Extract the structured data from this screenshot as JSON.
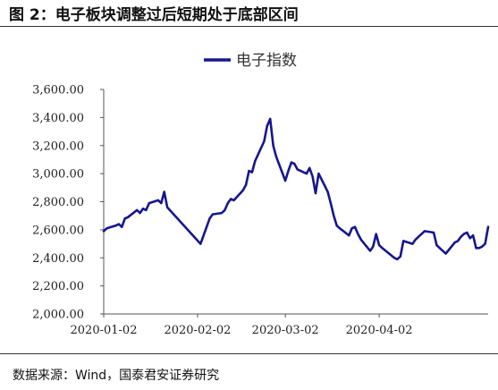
{
  "figure": {
    "title": "图 2：电子板块调整过后短期处于底部区间",
    "source": "数据来源：Wind，国泰君安证券研究"
  },
  "colors": {
    "line": "#16168f",
    "axis": "#555555",
    "text": "#222222"
  },
  "chart_data": {
    "type": "line",
    "title": "",
    "xlabel": "",
    "ylabel": "",
    "ylim": [
      2000,
      3600
    ],
    "y_ticks": [
      2000,
      2200,
      2400,
      2600,
      2800,
      3000,
      3200,
      3400,
      3600
    ],
    "y_tick_labels": [
      "2,000.00",
      "2,200.00",
      "2,400.00",
      "2,600.00",
      "2,800.00",
      "3,000.00",
      "3,200.00",
      "3,400.00",
      "3,600.00"
    ],
    "x_tick_labels": [
      "2020-01-02",
      "2020-02-02",
      "2020-03-02",
      "2020-04-02"
    ],
    "x_tick_dates": [
      "2020-01-02",
      "2020-02-02",
      "2020-03-02",
      "2020-04-02"
    ],
    "x_range": [
      "2020-01-02",
      "2020-05-08"
    ],
    "grid": false,
    "legend_position": "top-center",
    "series": [
      {
        "name": "电子指数",
        "points": [
          [
            "2020-01-02",
            2590
          ],
          [
            "2020-01-03",
            2610
          ],
          [
            "2020-01-06",
            2630
          ],
          [
            "2020-01-07",
            2640
          ],
          [
            "2020-01-08",
            2620
          ],
          [
            "2020-01-09",
            2680
          ],
          [
            "2020-01-10",
            2690
          ],
          [
            "2020-01-13",
            2740
          ],
          [
            "2020-01-14",
            2720
          ],
          [
            "2020-01-15",
            2750
          ],
          [
            "2020-01-16",
            2740
          ],
          [
            "2020-01-17",
            2790
          ],
          [
            "2020-01-20",
            2810
          ],
          [
            "2020-01-21",
            2790
          ],
          [
            "2020-01-22",
            2870
          ],
          [
            "2020-01-23",
            2760
          ],
          [
            "2020-02-03",
            2500
          ],
          [
            "2020-02-04",
            2560
          ],
          [
            "2020-02-05",
            2620
          ],
          [
            "2020-02-06",
            2680
          ],
          [
            "2020-02-07",
            2710
          ],
          [
            "2020-02-10",
            2720
          ],
          [
            "2020-02-11",
            2740
          ],
          [
            "2020-02-12",
            2790
          ],
          [
            "2020-02-13",
            2820
          ],
          [
            "2020-02-14",
            2810
          ],
          [
            "2020-02-17",
            2880
          ],
          [
            "2020-02-18",
            2920
          ],
          [
            "2020-02-19",
            3020
          ],
          [
            "2020-02-20",
            3010
          ],
          [
            "2020-02-21",
            3090
          ],
          [
            "2020-02-24",
            3230
          ],
          [
            "2020-02-25",
            3340
          ],
          [
            "2020-02-26",
            3390
          ],
          [
            "2020-02-27",
            3200
          ],
          [
            "2020-02-28",
            3120
          ],
          [
            "2020-03-02",
            2950
          ],
          [
            "2020-03-03",
            3020
          ],
          [
            "2020-03-04",
            3080
          ],
          [
            "2020-03-05",
            3070
          ],
          [
            "2020-03-06",
            3030
          ],
          [
            "2020-03-09",
            3000
          ],
          [
            "2020-03-10",
            3040
          ],
          [
            "2020-03-11",
            2980
          ],
          [
            "2020-03-12",
            2860
          ],
          [
            "2020-03-13",
            3000
          ],
          [
            "2020-03-16",
            2870
          ],
          [
            "2020-03-17",
            2790
          ],
          [
            "2020-03-18",
            2700
          ],
          [
            "2020-03-19",
            2630
          ],
          [
            "2020-03-20",
            2610
          ],
          [
            "2020-03-23",
            2560
          ],
          [
            "2020-03-24",
            2610
          ],
          [
            "2020-03-25",
            2620
          ],
          [
            "2020-03-26",
            2570
          ],
          [
            "2020-03-27",
            2530
          ],
          [
            "2020-03-30",
            2450
          ],
          [
            "2020-03-31",
            2480
          ],
          [
            "2020-04-01",
            2570
          ],
          [
            "2020-04-02",
            2490
          ],
          [
            "2020-04-03",
            2470
          ],
          [
            "2020-04-07",
            2400
          ],
          [
            "2020-04-08",
            2390
          ],
          [
            "2020-04-09",
            2410
          ],
          [
            "2020-04-10",
            2520
          ],
          [
            "2020-04-13",
            2500
          ],
          [
            "2020-04-14",
            2530
          ],
          [
            "2020-04-15",
            2550
          ],
          [
            "2020-04-16",
            2570
          ],
          [
            "2020-04-17",
            2590
          ],
          [
            "2020-04-20",
            2580
          ],
          [
            "2020-04-21",
            2490
          ],
          [
            "2020-04-22",
            2470
          ],
          [
            "2020-04-23",
            2450
          ],
          [
            "2020-04-24",
            2430
          ],
          [
            "2020-04-27",
            2510
          ],
          [
            "2020-04-28",
            2520
          ],
          [
            "2020-04-29",
            2550
          ],
          [
            "2020-04-30",
            2570
          ],
          [
            "2020-05-01",
            2580
          ],
          [
            "2020-05-02",
            2540
          ],
          [
            "2020-05-03",
            2560
          ],
          [
            "2020-05-04",
            2470
          ],
          [
            "2020-05-05",
            2470
          ],
          [
            "2020-05-06",
            2480
          ],
          [
            "2020-05-07",
            2500
          ],
          [
            "2020-05-08",
            2620
          ]
        ]
      }
    ]
  }
}
